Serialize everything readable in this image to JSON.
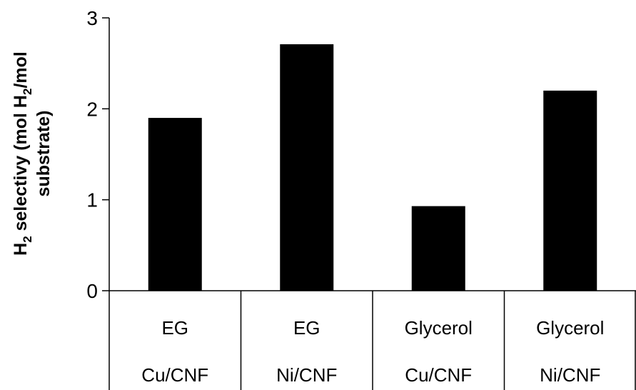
{
  "chart_data": {
    "type": "bar",
    "categories": [
      {
        "level1": "EG",
        "level2": "Cu/CNF"
      },
      {
        "level1": "EG",
        "level2": "Ni/CNF"
      },
      {
        "level1": "Glycerol",
        "level2": "Cu/CNF"
      },
      {
        "level1": "Glycerol",
        "level2": "Ni/CNF"
      }
    ],
    "values": [
      1.9,
      2.71,
      0.93,
      2.2
    ],
    "title": "",
    "xlabel": "",
    "ylabel": {
      "line1_main": "H",
      "line1_sub1": "2",
      "line1_mid": " selectivy (mol H",
      "line1_sub2": "2",
      "line1_end": "/mol",
      "line2": "substrate)"
    },
    "ylim": [
      0,
      3
    ],
    "yticks": [
      "0",
      "1",
      "2",
      "3"
    ],
    "grid": false,
    "legend": "none",
    "bar_color": "#000000",
    "axis_color": "#000000"
  }
}
